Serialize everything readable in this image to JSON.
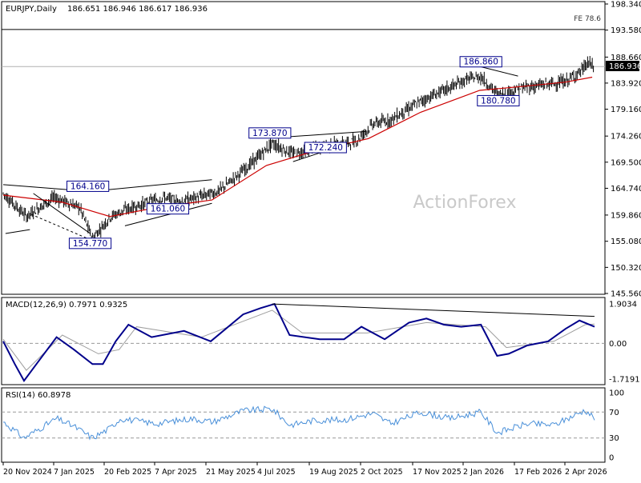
{
  "header": {
    "symbol": "EURJPY,Daily",
    "ohlc": "186.651 186.946 186.617 186.936"
  },
  "watermark": "ActionForex",
  "fe_label": "FE 78.6",
  "last_price_label": "186.936",
  "price_axis": {
    "ticks": [
      "198.340",
      "193.580",
      "188.660",
      "183.920",
      "179.160",
      "174.260",
      "169.500",
      "164.740",
      "159.860",
      "155.080",
      "150.320",
      "145.560"
    ],
    "ylim": [
      145.56,
      198.34
    ]
  },
  "macd": {
    "header": "MACD(12,26,9) 0.7971 0.9325",
    "ticks": [
      "1.9034",
      "0.00",
      "-1.7191"
    ],
    "ylim": [
      -1.7191,
      1.9034
    ]
  },
  "rsi": {
    "header": "RSI(14) 60.8978",
    "ticks": [
      "100",
      "70",
      "30",
      "0"
    ],
    "ylim": [
      0,
      100
    ]
  },
  "date_axis": [
    "20 Nov 2024",
    "7 Jan 2025",
    "20 Feb 2025",
    "7 Apr 2025",
    "21 May 2025",
    "4 Jul 2025",
    "19 Aug 2025",
    "2 Oct 2025",
    "17 Nov 2025",
    "2 Jan 2026",
    "17 Feb 2026",
    "2 Apr 2026"
  ],
  "colors": {
    "grid": "#bdbdbd",
    "candle": "#000000",
    "ma": "#cc0000",
    "macd": "#00008b",
    "signal": "#9e9e9e",
    "rsi": "#4a90d9",
    "label_border": "#00008b",
    "label_text": "#00008b"
  },
  "chart_data": [
    {
      "type": "candlestick",
      "title": "EURJPY,Daily",
      "annotations": [
        {
          "label": "164.160",
          "value": 164.16,
          "date": "2025-02-01"
        },
        {
          "label": "154.770",
          "value": 154.77,
          "date": "2025-02-03"
        },
        {
          "label": "161.060",
          "value": 161.06,
          "date": "2025-04-11"
        },
        {
          "label": "173.870",
          "value": 173.87,
          "date": "2025-07-08"
        },
        {
          "label": "172.240",
          "value": 172.24,
          "date": "2025-08-25"
        },
        {
          "label": "186.860",
          "value": 186.86,
          "date": "2026-01-06"
        },
        {
          "label": "180.780",
          "value": 180.78,
          "date": "2026-01-21"
        }
      ],
      "last_close": 186.936,
      "trendlines": [
        {
          "from": [
            "2024-11-20",
            165.4
          ],
          "to": [
            "2025-02-01",
            164.2
          ]
        },
        {
          "from": [
            "2024-11-22",
            156.5
          ],
          "to": [
            "2024-12-13",
            157.2
          ]
        },
        {
          "from": [
            "2024-12-16",
            163.8
          ],
          "to": [
            "2025-02-03",
            156.5
          ]
        },
        {
          "from": [
            "2025-02-05",
            164.2
          ],
          "to": [
            "2025-05-19",
            166.3
          ]
        },
        {
          "from": [
            "2025-03-05",
            157.9
          ],
          "to": [
            "2025-05-19",
            162.0
          ]
        },
        {
          "from": [
            "2025-07-08",
            173.9
          ],
          "to": [
            "2025-09-29",
            175.1
          ]
        },
        {
          "from": [
            "2025-07-28",
            169.6
          ],
          "to": [
            "2025-09-15",
            173.0
          ]
        },
        {
          "from": [
            "2026-01-06",
            186.9
          ],
          "to": [
            "2026-02-07",
            185.2
          ]
        },
        {
          "from": [
            "2026-01-21",
            180.8
          ],
          "to": [
            "2026-02-07",
            180.9
          ]
        }
      ],
      "ma_path": [
        [
          "2024-11-20",
          163.5
        ],
        [
          "2025-01-10",
          162.2
        ],
        [
          "2025-02-20",
          159.6
        ],
        [
          "2025-04-01",
          161.2
        ],
        [
          "2025-05-19",
          162.6
        ],
        [
          "2025-07-05",
          168.9
        ],
        [
          "2025-08-15",
          171.5
        ],
        [
          "2025-10-01",
          173.8
        ],
        [
          "2025-11-15",
          178.6
        ],
        [
          "2026-01-05",
          182.6
        ],
        [
          "2026-02-10",
          183.3
        ],
        [
          "2026-03-20",
          184.1
        ],
        [
          "2026-04-12",
          185.0
        ]
      ],
      "price_path": [
        [
          "2024-11-20",
          163.8
        ],
        [
          "2024-12-10",
          159.6
        ],
        [
          "2025-01-03",
          163.1
        ],
        [
          "2025-01-25",
          161.2
        ],
        [
          "2025-02-05",
          155.6
        ],
        [
          "2025-02-20",
          159.5
        ],
        [
          "2025-03-05",
          160.8
        ],
        [
          "2025-04-08",
          163.1
        ],
        [
          "2025-04-20",
          162.2
        ],
        [
          "2025-05-10",
          163.3
        ],
        [
          "2025-05-25",
          164.2
        ],
        [
          "2025-06-20",
          168.9
        ],
        [
          "2025-07-10",
          172.9
        ],
        [
          "2025-07-28",
          171.0
        ],
        [
          "2025-08-20",
          172.3
        ],
        [
          "2025-09-20",
          173.3
        ],
        [
          "2025-10-05",
          176.5
        ],
        [
          "2025-10-20",
          177.2
        ],
        [
          "2025-11-15",
          180.6
        ],
        [
          "2025-12-05",
          182.6
        ],
        [
          "2025-12-25",
          184.6
        ],
        [
          "2026-01-06",
          185.1
        ],
        [
          "2026-01-21",
          181.7
        ],
        [
          "2026-02-10",
          183.0
        ],
        [
          "2026-03-01",
          183.6
        ],
        [
          "2026-03-20",
          184.2
        ],
        [
          "2026-04-03",
          186.2
        ],
        [
          "2026-04-08",
          187.6
        ],
        [
          "2026-04-14",
          186.9
        ]
      ]
    },
    {
      "type": "line",
      "title": "MACD(12,26,9)",
      "series": [
        {
          "values": [
            [
              "2024-11-20",
              0.1
            ],
            [
              "2024-11-30",
              -1.0
            ],
            [
              "2024-12-08",
              -1.8
            ],
            [
              "2024-12-20",
              -0.9
            ],
            [
              "2025-01-05",
              0.3
            ],
            [
              "2025-01-20",
              -0.3
            ],
            [
              "2025-02-05",
              -1.0
            ],
            [
              "2025-02-14",
              -1.0
            ],
            [
              "2025-02-25",
              0.1
            ],
            [
              "2025-03-08",
              0.9
            ],
            [
              "2025-03-28",
              0.3
            ],
            [
              "2025-04-25",
              0.6
            ],
            [
              "2025-05-18",
              0.1
            ],
            [
              "2025-06-15",
              1.4
            ],
            [
              "2025-06-30",
              1.7
            ],
            [
              "2025-07-12",
              1.9
            ],
            [
              "2025-07-25",
              0.4
            ],
            [
              "2025-08-20",
              0.2
            ],
            [
              "2025-09-10",
              0.2
            ],
            [
              "2025-09-25",
              0.8
            ],
            [
              "2025-10-15",
              0.2
            ],
            [
              "2025-11-05",
              1.0
            ],
            [
              "2025-11-20",
              1.2
            ],
            [
              "2025-12-05",
              0.9
            ],
            [
              "2025-12-20",
              0.8
            ],
            [
              "2026-01-06",
              0.9
            ],
            [
              "2026-01-20",
              -0.6
            ],
            [
              "2026-01-30",
              -0.5
            ],
            [
              "2026-02-15",
              -0.1
            ],
            [
              "2026-03-05",
              0.1
            ],
            [
              "2026-03-20",
              0.7
            ],
            [
              "2026-04-01",
              1.1
            ],
            [
              "2026-04-14",
              0.8
            ]
          ]
        },
        {
          "values": [
            [
              "2024-11-20",
              0.2
            ],
            [
              "2024-12-10",
              -1.3
            ],
            [
              "2025-01-10",
              0.4
            ],
            [
              "2025-02-10",
              -0.5
            ],
            [
              "2025-02-28",
              -0.3
            ],
            [
              "2025-03-15",
              0.8
            ],
            [
              "2025-05-10",
              0.3
            ],
            [
              "2025-07-10",
              1.6
            ],
            [
              "2025-08-05",
              0.5
            ],
            [
              "2025-09-30",
              0.5
            ],
            [
              "2025-11-20",
              1.0
            ],
            [
              "2026-01-10",
              0.8
            ],
            [
              "2026-01-28",
              -0.2
            ],
            [
              "2026-03-10",
              0.1
            ],
            [
              "2026-04-06",
              0.9
            ],
            [
              "2026-04-14",
              0.93
            ]
          ]
        }
      ],
      "trendline": {
        "from": [
          "2025-07-10",
          1.9
        ],
        "to": [
          "2026-04-14",
          1.3
        ]
      },
      "ylim": [
        -1.7191,
        1.9034
      ]
    },
    {
      "type": "line",
      "title": "RSI(14)",
      "series": [
        {
          "values": [
            [
              "2024-11-20",
              55
            ],
            [
              "2024-12-08",
              30
            ],
            [
              "2024-12-22",
              45
            ],
            [
              "2025-01-05",
              60
            ],
            [
              "2025-01-20",
              48
            ],
            [
              "2025-02-05",
              30
            ],
            [
              "2025-02-20",
              45
            ],
            [
              "2025-03-01",
              60
            ],
            [
              "2025-04-01",
              52
            ],
            [
              "2025-05-01",
              60
            ],
            [
              "2025-05-20",
              55
            ],
            [
              "2025-06-15",
              72
            ],
            [
              "2025-07-10",
              75
            ],
            [
              "2025-07-25",
              50
            ],
            [
              "2025-08-15",
              57
            ],
            [
              "2025-09-10",
              58
            ],
            [
              "2025-10-05",
              68
            ],
            [
              "2025-10-20",
              52
            ],
            [
              "2025-11-15",
              70
            ],
            [
              "2025-12-10",
              60
            ],
            [
              "2026-01-06",
              70
            ],
            [
              "2026-01-20",
              38
            ],
            [
              "2026-02-15",
              52
            ],
            [
              "2026-03-10",
              50
            ],
            [
              "2026-04-06",
              73
            ],
            [
              "2026-04-14",
              61
            ]
          ]
        }
      ],
      "levels": [
        70,
        30
      ],
      "ylim": [
        0,
        100
      ]
    }
  ]
}
